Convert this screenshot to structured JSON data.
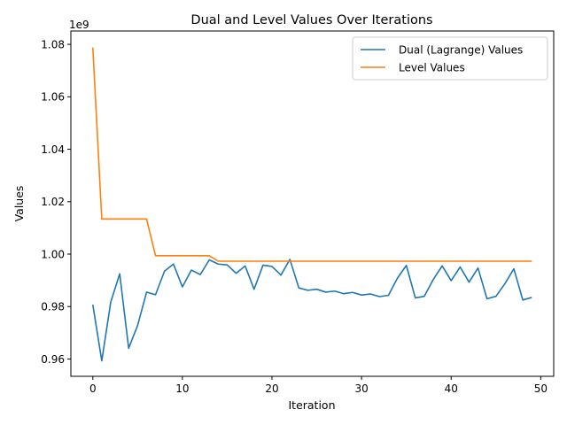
{
  "chart_data": {
    "type": "line",
    "title": "Dual and Level Values Over Iterations",
    "xlabel": "Iteration",
    "ylabel": "Values",
    "y_offset_label": "1e9",
    "y_scale": 1000000000,
    "xlim": [
      -2.45,
      51.45
    ],
    "ylim": [
      0.9534,
      1.0851
    ],
    "x_ticks": [
      0,
      10,
      20,
      30,
      40,
      50
    ],
    "y_ticks": [
      0.96,
      0.98,
      1.0,
      1.02,
      1.04,
      1.06,
      1.08
    ],
    "y_tick_labels": [
      "0.96",
      "0.98",
      "1.00",
      "1.02",
      "1.04",
      "1.06",
      "1.08"
    ],
    "grid": false,
    "legend_position": "top-right",
    "x": [
      0,
      1,
      2,
      3,
      4,
      5,
      6,
      7,
      8,
      9,
      10,
      11,
      12,
      13,
      14,
      15,
      16,
      17,
      18,
      19,
      20,
      21,
      22,
      23,
      24,
      25,
      26,
      27,
      28,
      29,
      30,
      31,
      32,
      33,
      34,
      35,
      36,
      37,
      38,
      39,
      40,
      41,
      42,
      43,
      44,
      45,
      46,
      47,
      48,
      49
    ],
    "series": [
      {
        "name": "Dual (Lagrange) Values",
        "color": "#1f77b4",
        "values": [
          0.9807,
          0.9593,
          0.9817,
          0.9925,
          0.9641,
          0.9728,
          0.9855,
          0.9845,
          0.9935,
          0.9962,
          0.9875,
          0.9939,
          0.9922,
          0.9978,
          0.9962,
          0.9959,
          0.9927,
          0.9955,
          0.9866,
          0.9958,
          0.9953,
          0.992,
          0.998,
          0.9871,
          0.9862,
          0.9866,
          0.9855,
          0.9859,
          0.9849,
          0.9854,
          0.9844,
          0.9848,
          0.9838,
          0.9843,
          0.9908,
          0.9957,
          0.9833,
          0.9839,
          0.9903,
          0.9955,
          0.9899,
          0.9951,
          0.9893,
          0.9947,
          0.983,
          0.9839,
          0.9887,
          0.9944,
          0.9825,
          0.9835
        ]
      },
      {
        "name": "Level Values",
        "color": "#ff7f0e",
        "values": [
          1.0788,
          1.0134,
          1.0134,
          1.0134,
          1.0134,
          1.0134,
          1.0134,
          0.9994,
          0.9994,
          0.9994,
          0.9994,
          0.9994,
          0.9994,
          0.9994,
          0.9973,
          0.9973,
          0.9973,
          0.9973,
          0.9973,
          0.9973,
          0.9973,
          0.9973,
          0.9973,
          0.9973,
          0.9973,
          0.9973,
          0.9973,
          0.9973,
          0.9973,
          0.9973,
          0.9973,
          0.9973,
          0.9973,
          0.9973,
          0.9973,
          0.9973,
          0.9973,
          0.9973,
          0.9973,
          0.9973,
          0.9973,
          0.9973,
          0.9973,
          0.9973,
          0.9973,
          0.9973,
          0.9973,
          0.9973,
          0.9973,
          0.9973
        ]
      }
    ]
  }
}
